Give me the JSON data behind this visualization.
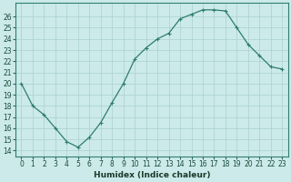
{
  "x": [
    0,
    1,
    2,
    3,
    4,
    5,
    6,
    7,
    8,
    9,
    10,
    11,
    12,
    13,
    14,
    15,
    16,
    17,
    18,
    19,
    20,
    21,
    22,
    23
  ],
  "y": [
    20.0,
    18.0,
    17.2,
    16.0,
    14.8,
    14.3,
    15.2,
    16.5,
    18.3,
    20.0,
    22.2,
    23.2,
    24.0,
    24.5,
    25.8,
    26.2,
    26.6,
    26.6,
    26.5,
    25.0,
    23.5,
    22.5,
    21.5,
    21.3
  ],
  "line_color": "#2e7d6e",
  "marker": "+",
  "marker_size": 3,
  "marker_lw": 0.8,
  "bg_color": "#cceaea",
  "grid_color": "#aacfcf",
  "xlabel": "Humidex (Indice chaleur)",
  "xlim": [
    -0.5,
    23.5
  ],
  "ylim": [
    13.5,
    27.2
  ],
  "yticks": [
    14,
    15,
    16,
    17,
    18,
    19,
    20,
    21,
    22,
    23,
    24,
    25,
    26
  ],
  "xticks": [
    0,
    1,
    2,
    3,
    4,
    5,
    6,
    7,
    8,
    9,
    10,
    11,
    12,
    13,
    14,
    15,
    16,
    17,
    18,
    19,
    20,
    21,
    22,
    23
  ],
  "label_fontsize": 6.5,
  "tick_fontsize": 5.5,
  "line_width": 0.9
}
